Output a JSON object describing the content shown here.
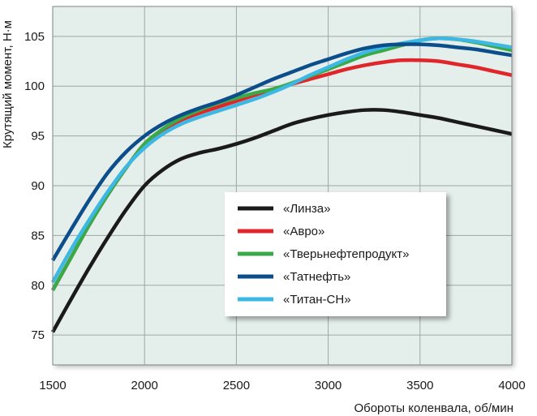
{
  "chart_data": {
    "type": "line",
    "title": "",
    "xlabel": "Обороты коленвала, об/мин",
    "ylabel": "Крутящий момент, Н·м",
    "xlim": [
      1500,
      4000
    ],
    "ylim": [
      72,
      108
    ],
    "xticks": [
      1500,
      2000,
      2500,
      3000,
      3500,
      4000
    ],
    "yticks": [
      75,
      80,
      85,
      90,
      95,
      100,
      105
    ],
    "grid": true,
    "legend_position": "center-right",
    "colors": {
      "plot_background": "#e4eeea",
      "grid": "#9ea7a5"
    },
    "series": [
      {
        "name": "«Линза»",
        "color": "#1a1a1a",
        "x": [
          1500,
          1600,
          1700,
          1800,
          1900,
          2000,
          2100,
          2200,
          2300,
          2400,
          2500,
          2600,
          2700,
          2800,
          2900,
          3000,
          3100,
          3200,
          3300,
          3400,
          3500,
          3600,
          3700,
          3800,
          3900,
          4000
        ],
        "y": [
          75.3,
          78.6,
          81.8,
          84.8,
          87.6,
          90.0,
          91.6,
          92.7,
          93.3,
          93.7,
          94.2,
          94.8,
          95.5,
          96.2,
          96.7,
          97.1,
          97.4,
          97.6,
          97.6,
          97.4,
          97.1,
          96.8,
          96.4,
          96.0,
          95.6,
          95.2
        ]
      },
      {
        "name": "«Авро»",
        "color": "#e0262b",
        "x": [
          1500,
          1600,
          1700,
          1800,
          1900,
          2000,
          2100,
          2200,
          2300,
          2400,
          2500,
          2600,
          2700,
          2800,
          2900,
          3000,
          3100,
          3200,
          3300,
          3400,
          3500,
          3600,
          3700,
          3800,
          3900,
          4000
        ],
        "y": [
          79.5,
          82.8,
          86.1,
          89.1,
          91.8,
          94.2,
          95.6,
          96.6,
          97.3,
          97.9,
          98.5,
          99.1,
          99.7,
          100.2,
          100.7,
          101.2,
          101.7,
          102.1,
          102.4,
          102.6,
          102.6,
          102.5,
          102.2,
          101.9,
          101.5,
          101.1
        ]
      },
      {
        "name": "«Тверьнефтепродукт»",
        "color": "#3aaa48",
        "x": [
          1500,
          1600,
          1700,
          1800,
          1900,
          2000,
          2100,
          2200,
          2300,
          2400,
          2500,
          2600,
          2700,
          2800,
          2900,
          3000,
          3100,
          3200,
          3300,
          3400,
          3500,
          3600,
          3700,
          3800,
          3900,
          4000
        ],
        "y": [
          79.5,
          82.8,
          86.1,
          89.1,
          91.8,
          94.2,
          95.7,
          96.8,
          97.6,
          98.3,
          98.8,
          99.3,
          99.7,
          100.3,
          101.0,
          101.7,
          102.4,
          103.1,
          103.6,
          104.1,
          104.6,
          104.8,
          104.7,
          104.4,
          104.0,
          103.6
        ]
      },
      {
        "name": "«Татнефть»",
        "color": "#0c4d8c",
        "x": [
          1500,
          1600,
          1700,
          1800,
          1900,
          2000,
          2100,
          2200,
          2300,
          2400,
          2500,
          2600,
          2700,
          2800,
          2900,
          3000,
          3100,
          3200,
          3300,
          3400,
          3500,
          3600,
          3700,
          3800,
          3900,
          4000
        ],
        "y": [
          82.5,
          85.6,
          88.6,
          91.3,
          93.4,
          95.0,
          96.2,
          97.1,
          97.8,
          98.4,
          99.1,
          99.9,
          100.7,
          101.4,
          102.1,
          102.7,
          103.3,
          103.8,
          104.1,
          104.2,
          104.2,
          104.1,
          103.9,
          103.7,
          103.4,
          103.1
        ]
      },
      {
        "name": "«Титан-СН»",
        "color": "#3db8e4",
        "x": [
          1500,
          1600,
          1700,
          1800,
          1900,
          2000,
          2100,
          2200,
          2300,
          2400,
          2500,
          2600,
          2700,
          2800,
          2900,
          3000,
          3100,
          3200,
          3300,
          3400,
          3500,
          3600,
          3700,
          3800,
          3900,
          4000
        ],
        "y": [
          80.3,
          83.6,
          86.6,
          89.4,
          91.9,
          93.8,
          95.2,
          96.2,
          96.9,
          97.5,
          98.1,
          98.7,
          99.4,
          100.2,
          101.1,
          101.9,
          102.7,
          103.4,
          103.9,
          104.3,
          104.6,
          104.8,
          104.7,
          104.5,
          104.2,
          103.9
        ]
      }
    ]
  }
}
